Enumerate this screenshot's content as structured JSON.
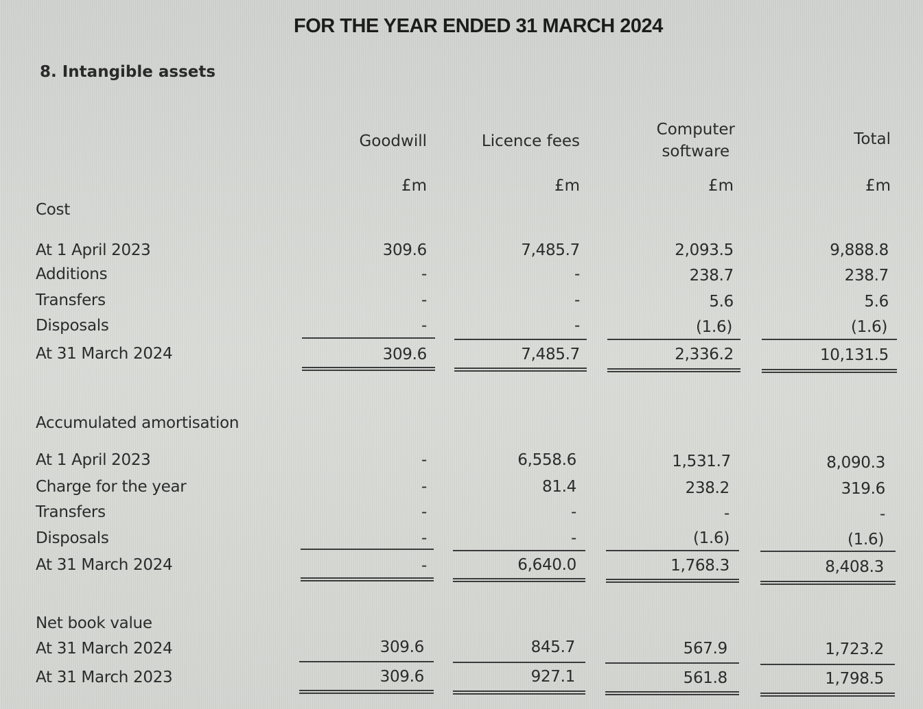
{
  "title": "FOR THE YEAR ENDED 31 MARCH 2024",
  "section_heading": "8. Intangible assets",
  "columns": [
    {
      "header": "Goodwill",
      "unit": "£m"
    },
    {
      "header": "Licence fees",
      "unit": "£m"
    },
    {
      "header_line1": "Computer",
      "header_line2": "software",
      "unit": "£m"
    },
    {
      "header": "Total",
      "unit": "£m"
    }
  ],
  "cost": {
    "label": "Cost",
    "rows": [
      {
        "label": "At 1 April 2023",
        "values": [
          "309.6",
          "7,485.7",
          "2,093.5",
          "9,888.8"
        ]
      },
      {
        "label": "Additions",
        "values": [
          "-",
          "-",
          "238.7",
          "238.7"
        ]
      },
      {
        "label": "Transfers",
        "values": [
          "-",
          "-",
          "5.6",
          "5.6"
        ]
      },
      {
        "label": "Disposals",
        "values": [
          "-",
          "-",
          "(1.6)",
          "(1.6)"
        ]
      },
      {
        "label": "At 31 March 2024",
        "values": [
          "309.6",
          "7,485.7",
          "2,336.2",
          "10,131.5"
        ]
      }
    ]
  },
  "amortisation": {
    "label": "Accumulated amortisation",
    "rows": [
      {
        "label": "At 1 April 2023",
        "values": [
          "-",
          "6,558.6",
          "1,531.7",
          "8,090.3"
        ]
      },
      {
        "label": "Charge for the year",
        "values": [
          "-",
          "81.4",
          "238.2",
          "319.6"
        ]
      },
      {
        "label": "Transfers",
        "values": [
          "-",
          "-",
          "-",
          "-"
        ]
      },
      {
        "label": "Disposals",
        "values": [
          "-",
          "-",
          "(1.6)",
          "(1.6)"
        ]
      },
      {
        "label": "At 31 March 2024",
        "values": [
          "-",
          "6,640.0",
          "1,768.3",
          "8,408.3"
        ]
      }
    ]
  },
  "nbv": {
    "label": "Net book value",
    "rows": [
      {
        "label": "At 31 March 2024",
        "values": [
          "309.6",
          "845.7",
          "567.9",
          "1,723.2"
        ]
      },
      {
        "label": "At 31 March 2023",
        "values": [
          "309.6",
          "927.1",
          "561.8",
          "1,798.5"
        ]
      }
    ]
  }
}
